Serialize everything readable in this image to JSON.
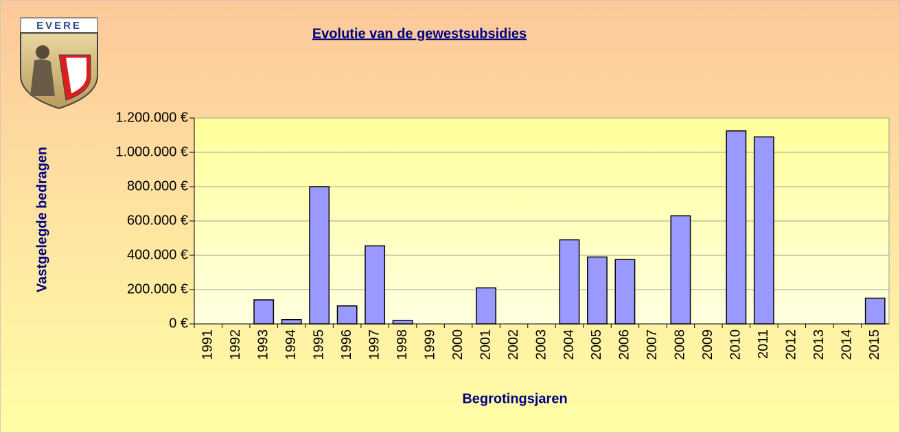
{
  "logo": {
    "text": "EVERE"
  },
  "chart_data": {
    "type": "bar",
    "title": "Evolutie van de gewestsubsidies",
    "y_label": "Vastgelegde bedragen",
    "x_label": "Begrotingsjaren",
    "categories": [
      "1991",
      "1992",
      "1993",
      "1994",
      "1995",
      "1996",
      "1997",
      "1998",
      "1999",
      "2000",
      "2001",
      "2002",
      "2003",
      "2004",
      "2005",
      "2006",
      "2007",
      "2008",
      "2009",
      "2010",
      "2011",
      "2012",
      "2013",
      "2014",
      "2015"
    ],
    "values": [
      0,
      0,
      140000,
      25000,
      800000,
      105000,
      455000,
      20000,
      0,
      0,
      210000,
      0,
      0,
      490000,
      390000,
      375000,
      0,
      630000,
      0,
      1125000,
      1090000,
      0,
      0,
      0,
      150000
    ],
    "color": "#9999ff",
    "ylim": [
      0,
      1200000
    ],
    "yticks": [
      {
        "value": 0,
        "label": "0 €"
      },
      {
        "value": 200000,
        "label": "200.000 €"
      },
      {
        "value": 400000,
        "label": "400.000 €"
      },
      {
        "value": 600000,
        "label": "600.000 €"
      },
      {
        "value": 800000,
        "label": "800.000 €"
      },
      {
        "value": 1000000,
        "label": "1.000.000 €"
      },
      {
        "value": 1200000,
        "label": "1.200.000 €"
      }
    ],
    "grid": true
  }
}
